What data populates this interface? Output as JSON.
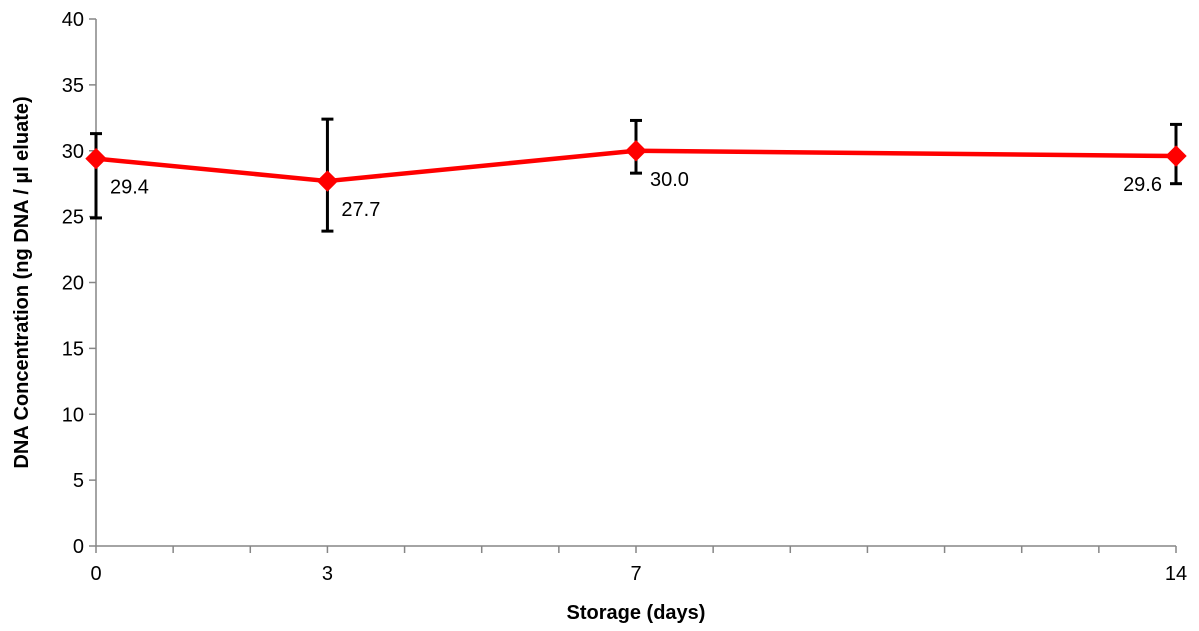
{
  "chart_data": {
    "type": "line",
    "title": "",
    "xlabel": "Storage (days)",
    "ylabel": "DNA Concentration (ng DNA / µl eluate)",
    "x": [
      0,
      3,
      7,
      14
    ],
    "x_tick_labels": [
      "0",
      "3",
      "7",
      "14"
    ],
    "xlim": [
      0,
      14
    ],
    "ylim": [
      0,
      40
    ],
    "y_ticks": [
      0,
      5,
      10,
      15,
      20,
      25,
      30,
      35,
      40
    ],
    "grid": false,
    "legend": "none",
    "series": [
      {
        "values": [
          29.4,
          27.7,
          30.0,
          29.6
        ],
        "data_labels": [
          "29.4",
          "27.7",
          "30.0",
          "29.6"
        ],
        "error_high": [
          31.3,
          32.4,
          32.3,
          32.0
        ],
        "error_low": [
          24.9,
          23.9,
          28.3,
          27.5
        ],
        "color": "#ff0000",
        "marker": "diamond"
      }
    ],
    "error_bar_color": "#000000"
  }
}
